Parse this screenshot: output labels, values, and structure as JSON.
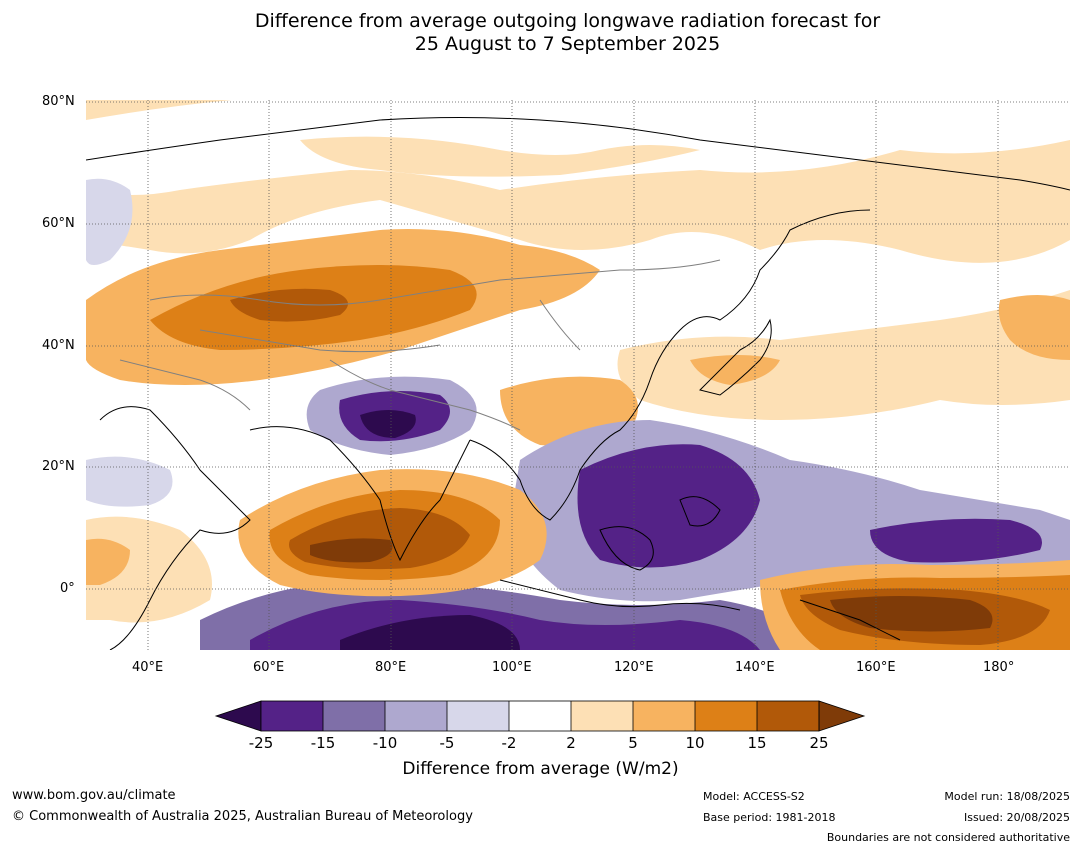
{
  "title_line1": "Difference from average outgoing longwave radiation forecast for",
  "title_line2": "25 August to 7 September 2025",
  "lat_labels": [
    "80°N",
    "60°N",
    "40°N",
    "20°N",
    "0°"
  ],
  "lon_labels": [
    "40°E",
    "60°E",
    "80°E",
    "100°E",
    "120°E",
    "140°E",
    "160°E",
    "180°"
  ],
  "colorbar": {
    "ticks": [
      "-25",
      "-15",
      "-10",
      "-5",
      "-2",
      "2",
      "5",
      "10",
      "15",
      "25"
    ],
    "colors": [
      "#2d0a4e",
      "#542287",
      "#7f6fa8",
      "#aea8cf",
      "#d7d7ea",
      "#ffffff",
      "#fde0b5",
      "#f7b360",
      "#dd8017",
      "#b15909",
      "#7f3b08"
    ],
    "title": "Difference from average (W/m2)"
  },
  "footer": {
    "website": "www.bom.gov.au/climate",
    "copyright": "© Commonwealth of Australia 2025, Australian Bureau of Meteorology",
    "model": "Model: ACCESS-S2",
    "base_period": "Base period: 1981-2018",
    "model_run": "Model run: 18/08/2025",
    "issued": "Issued: 20/08/2025",
    "boundaries_note": "Boundaries are not considered authoritative"
  }
}
